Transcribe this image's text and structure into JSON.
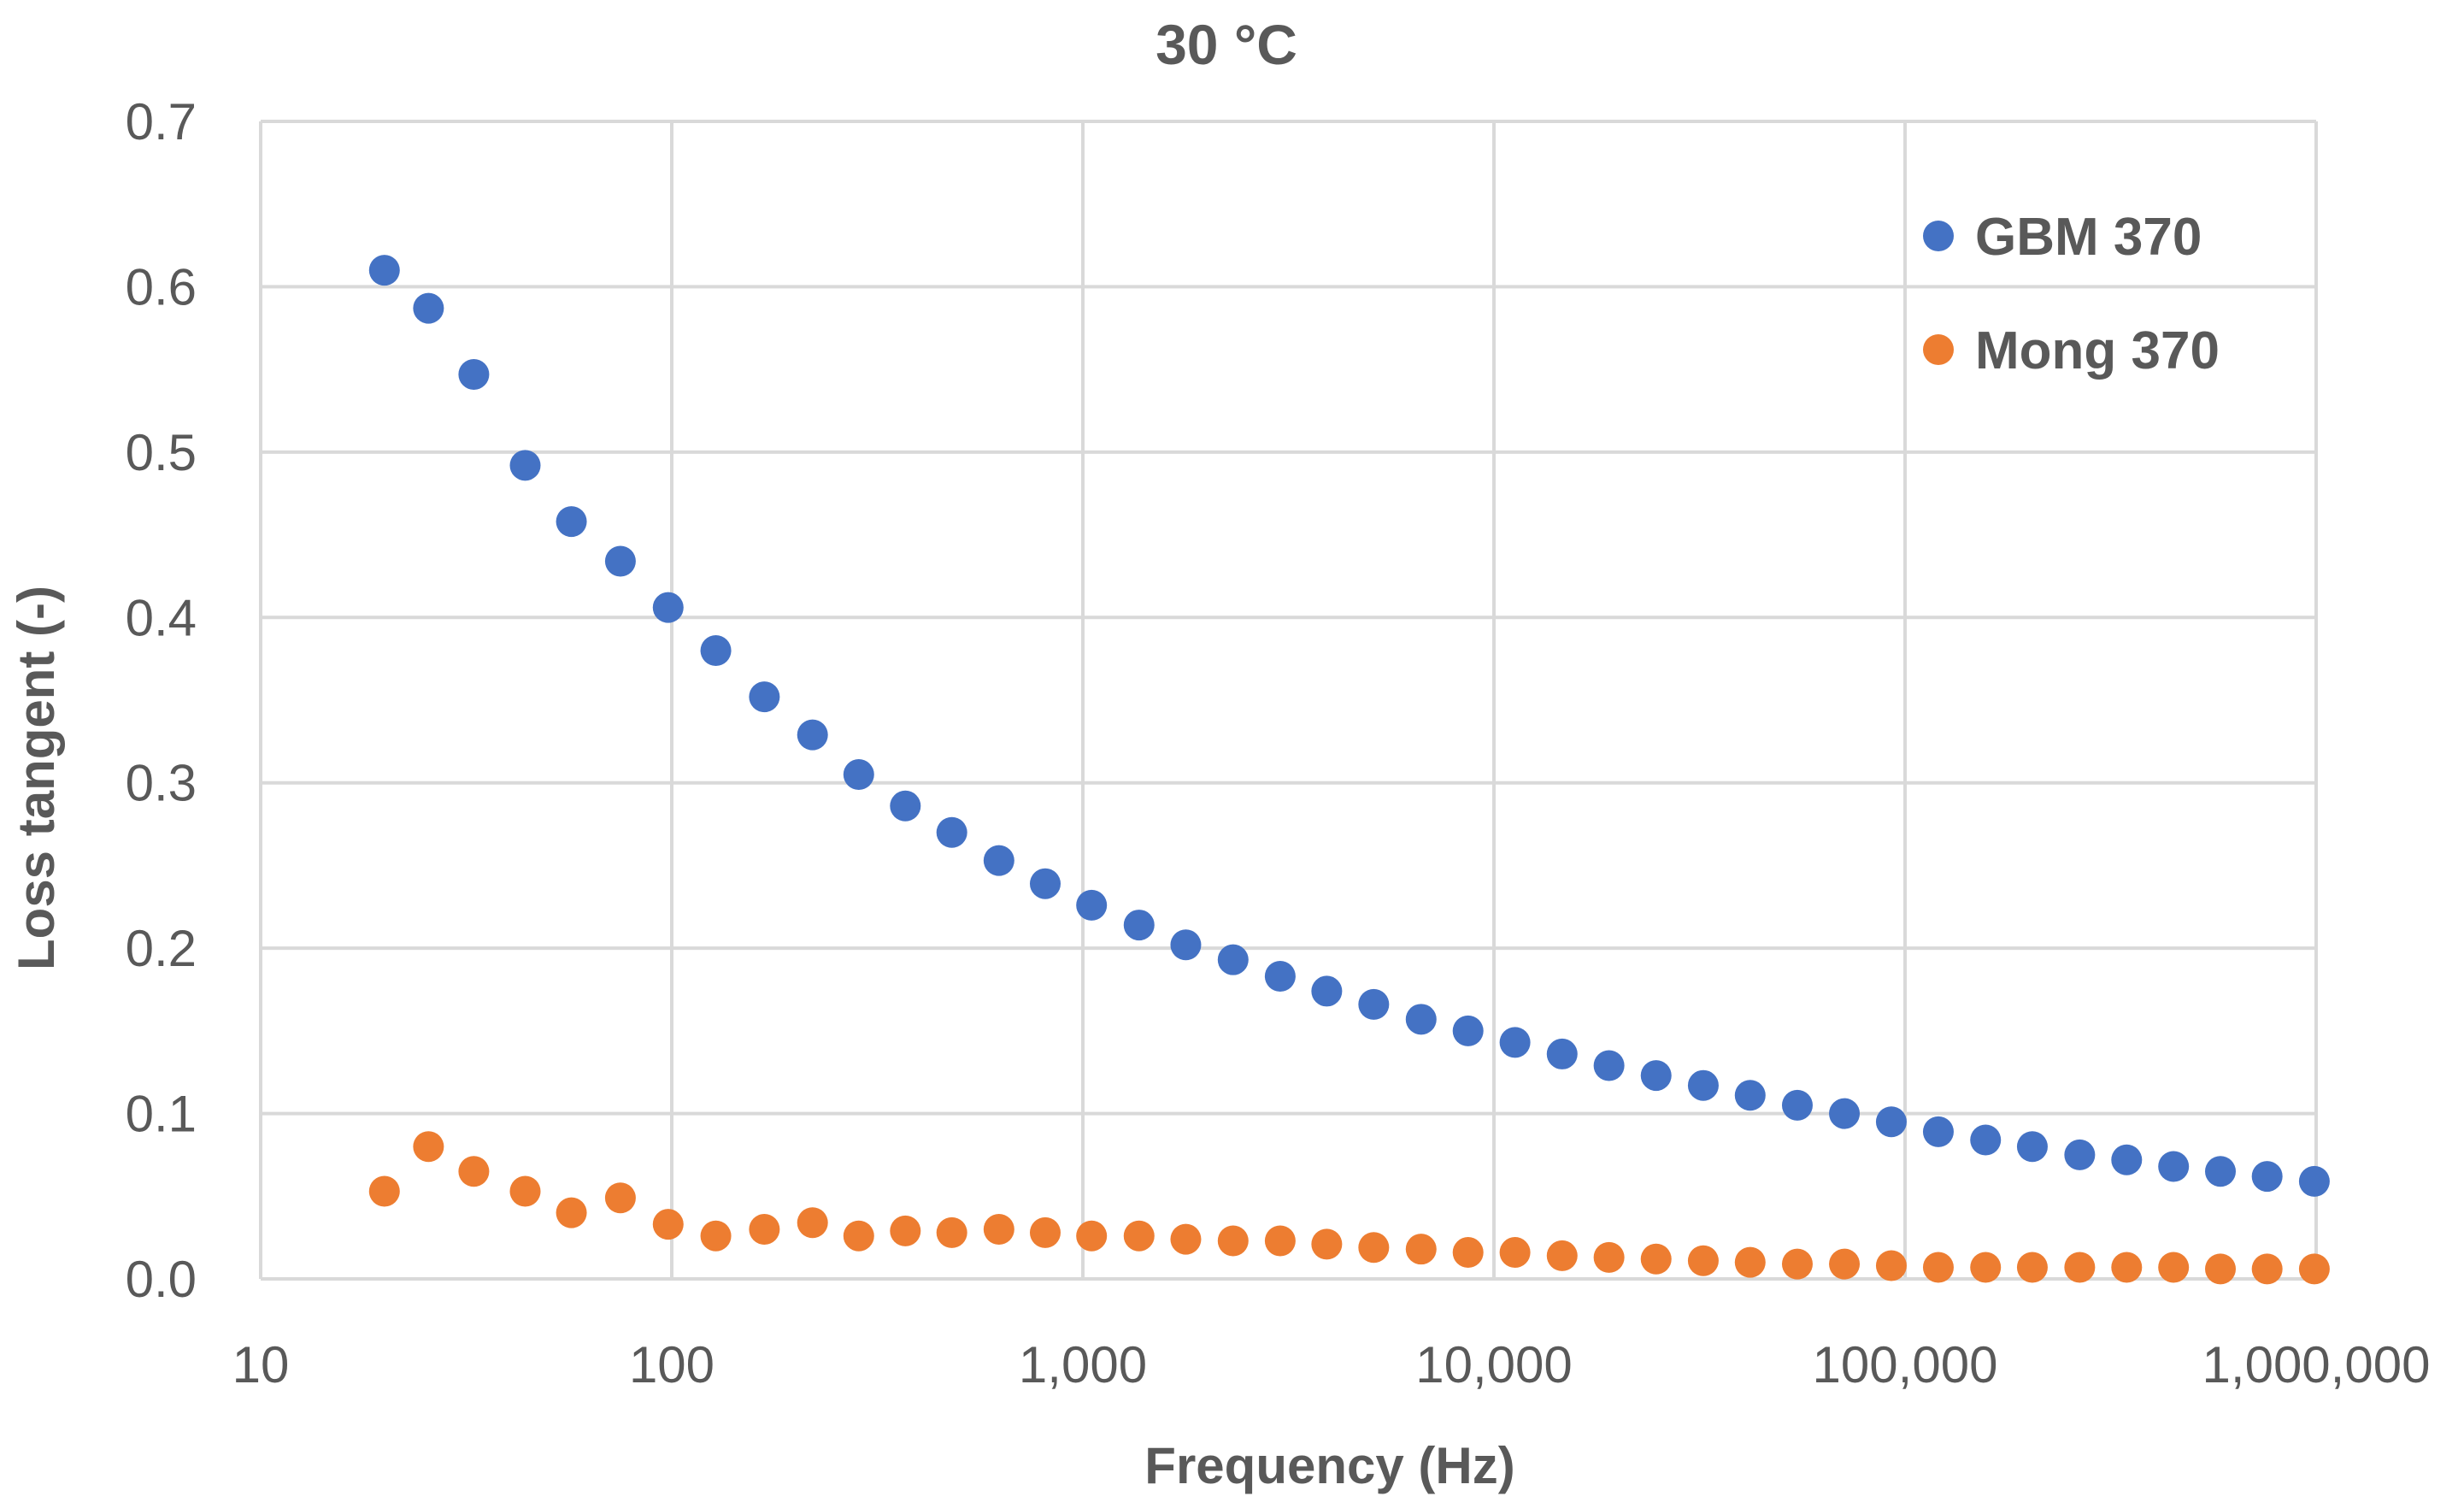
{
  "chart_data": {
    "type": "scatter",
    "title": "30 °C",
    "xlabel": "Frequency (Hz)",
    "ylabel": "Loss tangent (-)",
    "xscale": "log",
    "xlim": [
      10,
      1000000
    ],
    "ylim": [
      0,
      0.7
    ],
    "xticks": [
      10,
      100,
      1000,
      10000,
      100000,
      1000000
    ],
    "xtick_labels": [
      "10",
      "100",
      "1,000",
      "10,000",
      "100,000",
      "1,000,000"
    ],
    "yticks": [
      0,
      0.1,
      0.2,
      0.3,
      0.4,
      0.5,
      0.6,
      0.7
    ],
    "ytick_labels": [
      "0.0",
      "0.1",
      "0.2",
      "0.3",
      "0.4",
      "0.5",
      "0.6",
      "0.7"
    ],
    "grid": true,
    "legend_position": "top-right",
    "x": [
      20,
      25.6,
      33,
      44,
      57,
      75,
      98,
      128,
      168,
      220,
      285,
      370,
      480,
      625,
      810,
      1050,
      1370,
      1780,
      2320,
      3020,
      3920,
      5100,
      6650,
      8650,
      11250,
      14650,
      19050,
      24800,
      32300,
      42000,
      54700,
      71200,
      92600,
      120500,
      157000,
      204000,
      266000,
      346000,
      450000,
      585000,
      760000,
      990000
    ],
    "series": [
      {
        "name": "GBM 370",
        "color": "#4472c4",
        "values": [
          0.61,
          0.587,
          0.547,
          0.492,
          0.458,
          0.434,
          0.406,
          0.38,
          0.352,
          0.329,
          0.305,
          0.286,
          0.27,
          0.253,
          0.239,
          0.226,
          0.214,
          0.202,
          0.193,
          0.183,
          0.174,
          0.166,
          0.157,
          0.15,
          0.143,
          0.136,
          0.129,
          0.123,
          0.117,
          0.111,
          0.105,
          0.1,
          0.095,
          0.089,
          0.084,
          0.08,
          0.075,
          0.072,
          0.068,
          0.065,
          0.062,
          0.059
        ]
      },
      {
        "name": "Mong 370",
        "color": "#ed7d31",
        "values": [
          0.053,
          0.08,
          0.065,
          0.053,
          0.04,
          0.049,
          0.033,
          0.026,
          0.03,
          0.034,
          0.026,
          0.029,
          0.028,
          0.03,
          0.028,
          0.026,
          0.026,
          0.024,
          0.023,
          0.023,
          0.021,
          0.019,
          0.018,
          0.016,
          0.016,
          0.014,
          0.013,
          0.012,
          0.011,
          0.01,
          0.009,
          0.009,
          0.008,
          0.007,
          0.007,
          0.007,
          0.007,
          0.007,
          0.007,
          0.006,
          0.006,
          0.006
        ]
      }
    ]
  }
}
